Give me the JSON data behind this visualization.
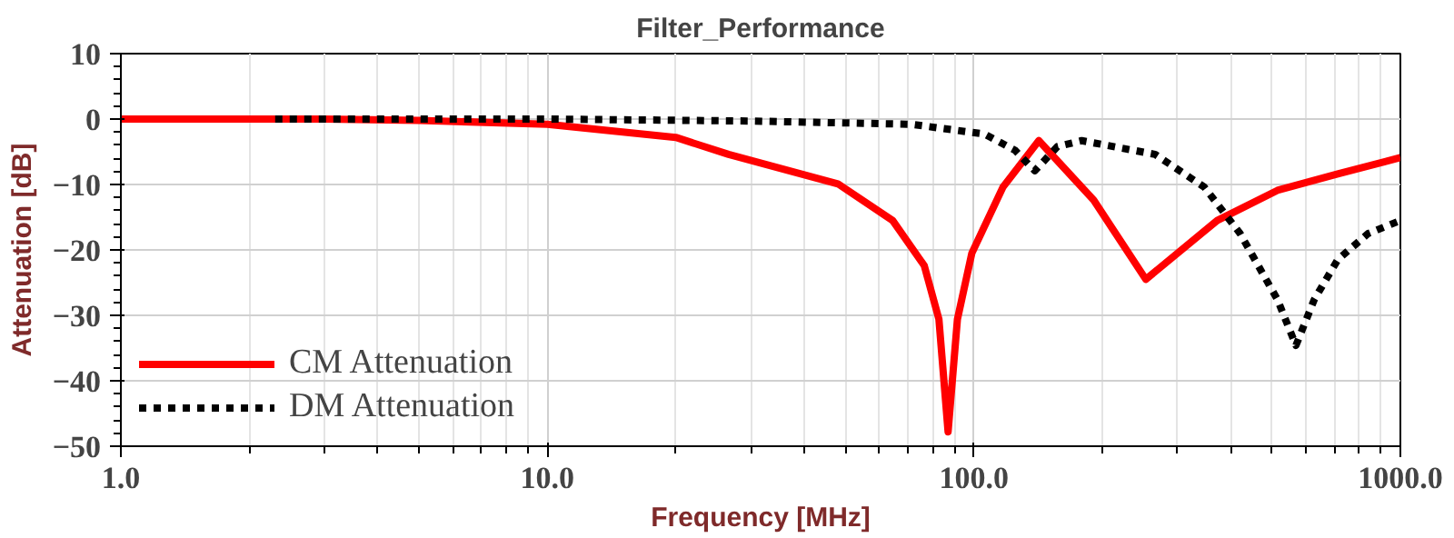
{
  "chart_data": {
    "type": "line",
    "title": "Filter_Performance",
    "xlabel": "Frequency [MHz]",
    "ylabel": "Attenuation [dB]",
    "log": "x",
    "xlim": [
      1,
      1000
    ],
    "ylim": [
      -50,
      10
    ],
    "xticks": [
      {
        "value": 1,
        "label": "1.0"
      },
      {
        "value": 10,
        "label": "10.0"
      },
      {
        "value": 100,
        "label": "100.0"
      },
      {
        "value": 1000,
        "label": "1000.0"
      }
    ],
    "yticks": [
      10,
      0,
      -10,
      -20,
      -30,
      -40,
      -50
    ],
    "grid": true,
    "legend": "bottom left",
    "series": [
      {
        "name": "CM Attenuation",
        "color": "#ff0000",
        "line_style": "solid",
        "x": [
          1,
          3,
          5,
          10,
          20,
          26.6,
          48,
          64.5,
          76.5,
          82.8,
          87,
          91.5,
          98.9,
          117,
          142,
          191,
          253,
          372,
          515,
          713,
          1000
        ],
        "values": [
          0,
          0,
          -0.2,
          -0.8,
          -2.8,
          -5.4,
          -9.9,
          -15.5,
          -22.4,
          -30.6,
          -47.8,
          -30.6,
          -20.5,
          -10.4,
          -3.3,
          -12.4,
          -24.5,
          -15.5,
          -10.9,
          -8.4,
          -5.9
        ]
      },
      {
        "name": "DM Attenuation",
        "color": "#000000",
        "line_style": "dotted",
        "x": [
          2.3,
          10,
          30,
          71.5,
          106,
          125,
          139,
          157,
          179,
          266,
          347,
          421,
          515,
          569,
          628,
          713,
          840,
          1000
        ],
        "values": [
          0,
          0,
          -0.3,
          -0.8,
          -2.3,
          -4.8,
          -7.9,
          -4.2,
          -3.3,
          -5.4,
          -10.4,
          -17.5,
          -27.6,
          -34.6,
          -27.6,
          -21.5,
          -17.5,
          -15.5
        ]
      }
    ]
  }
}
